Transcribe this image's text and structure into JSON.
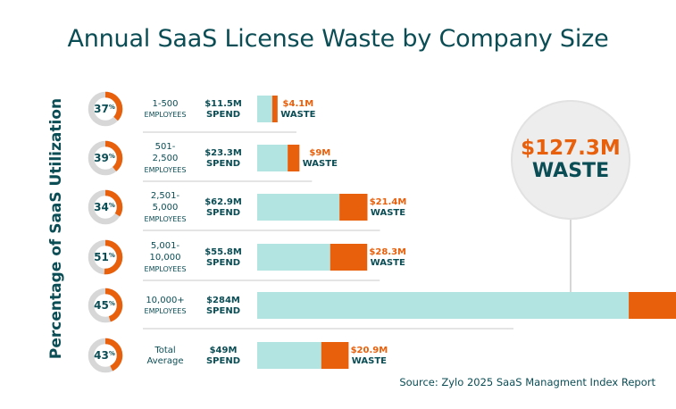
{
  "title": "Annual SaaS License Waste by Company Size",
  "source": "Source: Zylo 2025 SaaS Managment Index Report",
  "callout": {
    "value": "$127.3M",
    "label": "WASTE"
  },
  "colors": {
    "spend": "#b2e4e1",
    "waste": "#e8600c",
    "donut_track": "#d7d7d7",
    "text_dark": "#0b4d55",
    "divider": "#c8c8c8"
  },
  "chart_data": {
    "type": "bar",
    "stacked": true,
    "orientation": "horizontal",
    "ylabel": "Percentage of SaaS Utilization",
    "categories": [
      [
        "1-500",
        "EMPLOYEES"
      ],
      [
        "501-",
        "2,500",
        "EMPLOYEES"
      ],
      [
        "2,501-",
        "5,000",
        "EMPLOYEES"
      ],
      [
        "5,001-",
        "10,000",
        "EMPLOYEES"
      ],
      [
        "10,000+",
        "EMPLOYEES"
      ],
      [
        "Total",
        "Average"
      ]
    ],
    "utilization": [
      37,
      39,
      34,
      51,
      45,
      43
    ],
    "spend": [
      11.5,
      23.3,
      62.9,
      55.8,
      284,
      49
    ],
    "spend_labels": [
      "$11.5M",
      "$23.3M",
      "$62.9M",
      "$55.8M",
      "$284M",
      "$49M"
    ],
    "spend_caption": "SPEND",
    "waste": [
      4.1,
      9,
      21.4,
      28.3,
      127.3,
      20.9
    ],
    "waste_labels": [
      "$4.1M",
      "$9M",
      "$21.4M",
      "$28.3M",
      "",
      "$20.9M"
    ],
    "waste_caption": "WASTE",
    "pct_suffix": "%",
    "series": [
      {
        "name": "SPEND",
        "values": [
          11.5,
          23.3,
          62.9,
          55.8,
          284,
          49
        ]
      },
      {
        "name": "WASTE",
        "values": [
          4.1,
          9,
          21.4,
          28.3,
          127.3,
          20.9
        ]
      }
    ]
  }
}
